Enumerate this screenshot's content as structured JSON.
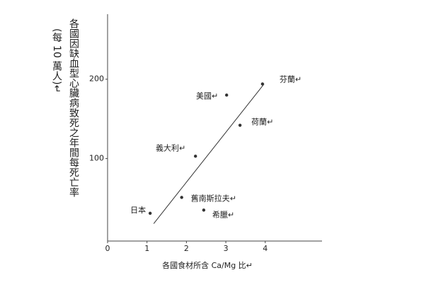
{
  "chart_data": {
    "type": "scatter",
    "y_label": "各國因缺血型心臟病致死之年間每死亡率",
    "y_label_unit": "(每 10 萬人)↵",
    "x_label": "各國食材所含 Ca/Mg 比↵",
    "labels": [
      "芬蘭↵",
      "美國↵",
      "荷蘭↵",
      "義大利↵",
      "舊南斯拉夫↵",
      "希臘↵",
      "日本"
    ],
    "x": [
      3.93,
      3.02,
      3.36,
      2.23,
      1.88,
      2.44,
      1.08
    ],
    "values": [
      194,
      180,
      142,
      103,
      51,
      35,
      31
    ],
    "color": "#333333",
    "trendline": {
      "x": [
        1.17,
        3.97
      ],
      "y": [
        18,
        194
      ]
    },
    "xlim": [
      0,
      5.44
    ],
    "ylim": [
      -4,
      282
    ],
    "xticks": [
      0,
      1,
      2,
      3,
      4
    ],
    "yticks": [
      100,
      200
    ]
  }
}
